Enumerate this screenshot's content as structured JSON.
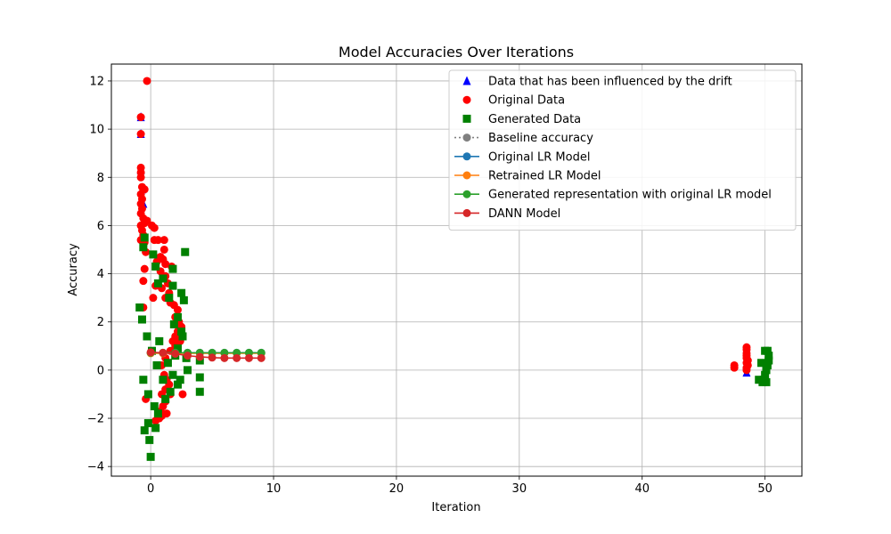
{
  "chart_data": {
    "type": "scatter",
    "title": "Model Accuracies Over Iterations",
    "xlabel": "Iteration",
    "ylabel": "Accuracy",
    "xlim": [
      -3.2,
      53.0
    ],
    "ylim": [
      -4.4,
      12.7
    ],
    "xticks": [
      0,
      10,
      20,
      30,
      40,
      50
    ],
    "yticks": [
      -4,
      -2,
      0,
      2,
      4,
      6,
      8,
      10,
      12
    ],
    "grid": true,
    "legend_position": "top-right",
    "legend": [
      {
        "label": "Data that has been influenced by the drift",
        "marker": "triangle",
        "color": "#0000ff",
        "line": false
      },
      {
        "label": "Original Data",
        "marker": "circle",
        "color": "#ff0000",
        "line": false
      },
      {
        "label": "Generated Data",
        "marker": "square",
        "color": "#008000",
        "line": false
      },
      {
        "label": "Baseline accuracy",
        "marker": "circle",
        "color": "#808080",
        "line": true,
        "dash": true
      },
      {
        "label": "Original LR Model",
        "marker": "circle",
        "color": "#1f77b4",
        "line": true
      },
      {
        "label": "Retrained LR Model",
        "marker": "circle",
        "color": "#ff7f0e",
        "line": true
      },
      {
        "label": "Generated representation with original LR model",
        "marker": "circle",
        "color": "#2ca02c",
        "line": true
      },
      {
        "label": "DANN Model",
        "marker": "circle",
        "color": "#d62728",
        "line": true
      }
    ],
    "scatter_series": [
      {
        "name": "Data that has been influenced by the drift",
        "marker": "triangle",
        "color": "#0000ff",
        "points": [
          [
            -0.8,
            9.8
          ],
          [
            -0.8,
            10.5
          ],
          [
            -0.8,
            8.3
          ],
          [
            -0.7,
            7.5
          ],
          [
            -0.6,
            6.9
          ],
          [
            48.5,
            0.2
          ],
          [
            48.5,
            -0.1
          ]
        ]
      },
      {
        "name": "Original Data",
        "marker": "circle",
        "color": "#ff0000",
        "points": [
          [
            -0.3,
            12.0
          ],
          [
            -0.8,
            10.5
          ],
          [
            -0.8,
            9.8
          ],
          [
            -0.8,
            8.4
          ],
          [
            -0.8,
            8.2
          ],
          [
            -0.8,
            8.0
          ],
          [
            -0.7,
            7.6
          ],
          [
            -0.6,
            7.5
          ],
          [
            -0.5,
            7.5
          ],
          [
            -0.8,
            7.3
          ],
          [
            -0.7,
            7.1
          ],
          [
            -0.8,
            6.9
          ],
          [
            -0.7,
            6.7
          ],
          [
            -0.8,
            6.5
          ],
          [
            -0.6,
            6.3
          ],
          [
            -0.5,
            6.1
          ],
          [
            -0.3,
            6.2
          ],
          [
            0.1,
            6.0
          ],
          [
            0.3,
            5.9
          ],
          [
            -0.8,
            6.0
          ],
          [
            -0.7,
            5.8
          ],
          [
            -0.6,
            5.6
          ],
          [
            -0.8,
            5.4
          ],
          [
            -0.5,
            5.3
          ],
          [
            0.3,
            5.4
          ],
          [
            0.6,
            5.4
          ],
          [
            1.1,
            5.4
          ],
          [
            1.1,
            5.0
          ],
          [
            0.8,
            4.7
          ],
          [
            1.0,
            4.6
          ],
          [
            -0.4,
            4.9
          ],
          [
            0.2,
            4.8
          ],
          [
            0.5,
            4.5
          ],
          [
            1.2,
            4.4
          ],
          [
            1.7,
            4.3
          ],
          [
            0.8,
            4.1
          ],
          [
            1.2,
            3.9
          ],
          [
            1.4,
            3.6
          ],
          [
            -0.6,
            3.7
          ],
          [
            0.4,
            3.5
          ],
          [
            0.9,
            3.4
          ],
          [
            1.5,
            3.2
          ],
          [
            1.2,
            3.0
          ],
          [
            1.6,
            2.8
          ],
          [
            1.9,
            2.7
          ],
          [
            2.2,
            2.5
          ],
          [
            2.0,
            2.2
          ],
          [
            2.3,
            2.0
          ],
          [
            2.5,
            1.8
          ],
          [
            2.2,
            1.6
          ],
          [
            2.0,
            1.4
          ],
          [
            1.8,
            1.2
          ],
          [
            2.4,
            1.2
          ],
          [
            2.0,
            1.0
          ],
          [
            1.6,
            0.8
          ],
          [
            1.2,
            0.5
          ],
          [
            0.9,
            0.2
          ],
          [
            1.1,
            -0.2
          ],
          [
            1.3,
            -0.4
          ],
          [
            1.5,
            -0.6
          ],
          [
            1.2,
            -0.8
          ],
          [
            0.9,
            -1.0
          ],
          [
            1.6,
            -1.0
          ],
          [
            1.2,
            -1.3
          ],
          [
            1.0,
            -1.5
          ],
          [
            0.8,
            -1.7
          ],
          [
            0.6,
            -1.9
          ],
          [
            0.9,
            -1.9
          ],
          [
            1.3,
            -1.8
          ],
          [
            0.4,
            -2.1
          ],
          [
            0.7,
            -2.0
          ],
          [
            -0.4,
            -1.2
          ],
          [
            -0.6,
            2.6
          ],
          [
            -0.5,
            4.2
          ],
          [
            2.6,
            -1.0
          ],
          [
            0.2,
            3.0
          ],
          [
            47.5,
            0.2
          ],
          [
            47.5,
            0.1
          ],
          [
            48.5,
            0.95
          ],
          [
            48.5,
            0.85
          ],
          [
            48.5,
            0.7
          ],
          [
            48.5,
            0.6
          ],
          [
            48.5,
            0.5
          ],
          [
            48.6,
            0.4
          ],
          [
            48.5,
            0.3
          ],
          [
            48.6,
            0.2
          ],
          [
            48.5,
            0.1
          ],
          [
            48.5,
            0.0
          ]
        ]
      },
      {
        "name": "Generated Data",
        "marker": "square",
        "color": "#008000",
        "points": [
          [
            2.8,
            4.9
          ],
          [
            1.8,
            4.2
          ],
          [
            0.4,
            4.3
          ],
          [
            -0.5,
            5.5
          ],
          [
            -0.6,
            5.1
          ],
          [
            0.2,
            4.8
          ],
          [
            1.0,
            3.8
          ],
          [
            1.8,
            3.5
          ],
          [
            2.5,
            3.2
          ],
          [
            2.7,
            2.9
          ],
          [
            1.5,
            3.0
          ],
          [
            0.6,
            3.6
          ],
          [
            2.2,
            2.2
          ],
          [
            2.5,
            1.6
          ],
          [
            2.6,
            1.4
          ],
          [
            2.2,
            0.9
          ],
          [
            2.0,
            0.6
          ],
          [
            2.9,
            0.5
          ],
          [
            3.0,
            0.0
          ],
          [
            1.8,
            -0.2
          ],
          [
            2.2,
            -0.6
          ],
          [
            2.4,
            -0.4
          ],
          [
            1.6,
            -0.9
          ],
          [
            1.2,
            -1.2
          ],
          [
            0.6,
            -1.8
          ],
          [
            0.4,
            -2.4
          ],
          [
            -0.2,
            -2.2
          ],
          [
            -0.5,
            -2.5
          ],
          [
            -0.1,
            -2.9
          ],
          [
            0.0,
            -3.6
          ],
          [
            4.0,
            0.4
          ],
          [
            4.0,
            -0.3
          ],
          [
            4.0,
            -0.9
          ],
          [
            -0.9,
            2.6
          ],
          [
            -0.7,
            2.1
          ],
          [
            -0.3,
            1.4
          ],
          [
            0.1,
            0.8
          ],
          [
            0.5,
            0.2
          ],
          [
            -0.6,
            -0.4
          ],
          [
            -0.2,
            -1.0
          ],
          [
            0.3,
            -1.5
          ],
          [
            1.4,
            0.3
          ],
          [
            1.0,
            -0.4
          ],
          [
            0.7,
            1.2
          ],
          [
            1.9,
            1.9
          ],
          [
            49.5,
            -0.4
          ],
          [
            49.7,
            0.3
          ],
          [
            50.0,
            0.8
          ],
          [
            50.2,
            0.8
          ],
          [
            50.3,
            0.6
          ],
          [
            50.3,
            0.4
          ],
          [
            50.2,
            0.2
          ],
          [
            50.1,
            0.0
          ],
          [
            50.0,
            -0.2
          ],
          [
            49.9,
            -0.4
          ],
          [
            49.8,
            -0.5
          ],
          [
            50.1,
            -0.5
          ]
        ]
      }
    ],
    "series": [
      {
        "name": "Original LR Model",
        "color": "#1f77b4",
        "x": [
          0,
          1,
          2,
          3,
          4,
          5,
          6,
          7,
          8,
          9
        ],
        "values": [
          0.72,
          0.72,
          0.72,
          0.72,
          0.72,
          0.72,
          0.72,
          0.72,
          0.72,
          0.72
        ]
      },
      {
        "name": "Retrained LR Model",
        "color": "#ff7f0e",
        "x": [
          0,
          1,
          2,
          3,
          4,
          5,
          6,
          7,
          8,
          9
        ],
        "values": [
          0.7,
          0.7,
          0.7,
          0.7,
          0.7,
          0.7,
          0.7,
          0.7,
          0.7,
          0.7
        ]
      },
      {
        "name": "Generated representation with original LR model",
        "color": "#2ca02c",
        "x": [
          0,
          1,
          2,
          3,
          4,
          5,
          6,
          7,
          8,
          9
        ],
        "values": [
          0.72,
          0.72,
          0.72,
          0.72,
          0.72,
          0.72,
          0.72,
          0.72,
          0.72,
          0.72
        ]
      },
      {
        "name": "DANN Model",
        "color": "#d62728",
        "x": [
          0,
          1,
          2,
          3,
          4,
          5,
          6,
          7,
          8,
          9
        ],
        "values": [
          0.74,
          0.72,
          0.68,
          0.6,
          0.55,
          0.52,
          0.5,
          0.5,
          0.5,
          0.5
        ]
      }
    ]
  }
}
